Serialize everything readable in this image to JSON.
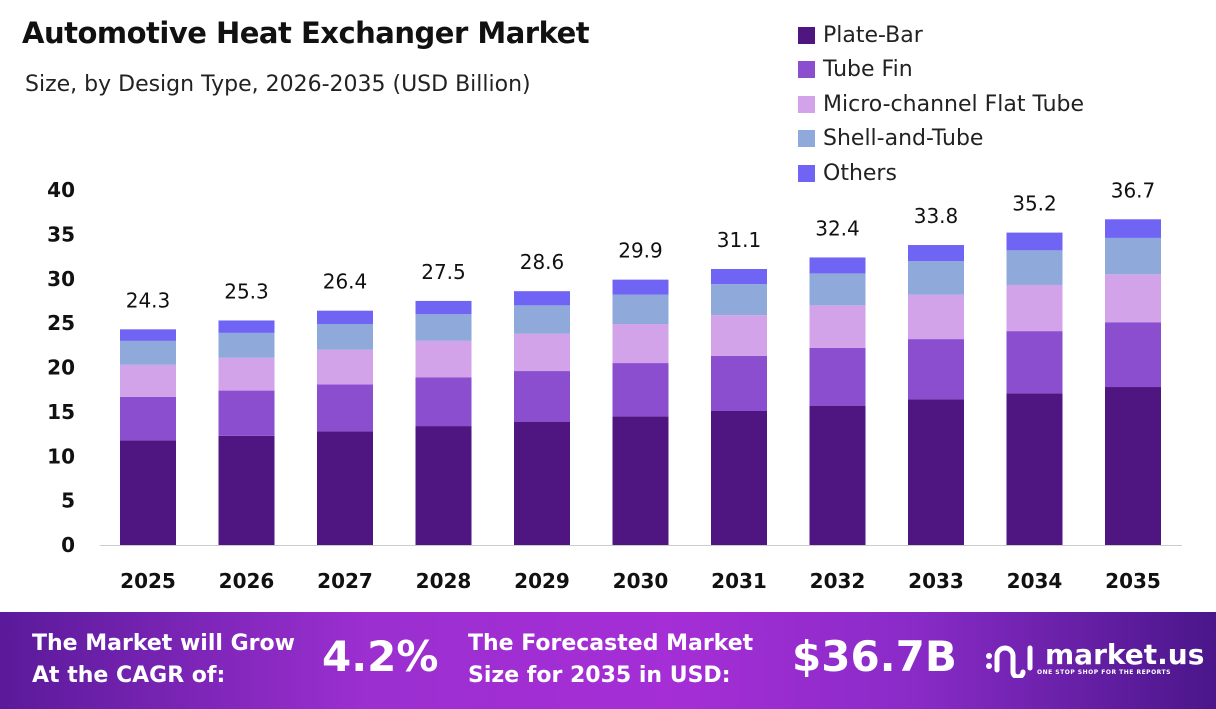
{
  "chart_data": {
    "type": "bar",
    "stacked": true,
    "title": "Automotive Heat Exchanger Market",
    "subtitle": "Size, by Design Type, 2026-2035 (USD Billion)",
    "categories": [
      "2025",
      "2026",
      "2027",
      "2028",
      "2029",
      "2030",
      "2031",
      "2032",
      "2033",
      "2034",
      "2035"
    ],
    "series": [
      {
        "name": "Plate-Bar",
        "color": "#4f1681",
        "values": [
          11.8,
          12.3,
          12.8,
          13.4,
          13.9,
          14.5,
          15.1,
          15.7,
          16.4,
          17.1,
          17.8
        ]
      },
      {
        "name": "Tube Fin",
        "color": "#8a4ecf",
        "values": [
          4.9,
          5.1,
          5.3,
          5.5,
          5.7,
          6.0,
          6.2,
          6.5,
          6.8,
          7.0,
          7.3
        ]
      },
      {
        "name": "Micro-channel Flat Tube",
        "color": "#d3a3ea",
        "values": [
          3.6,
          3.7,
          3.9,
          4.1,
          4.2,
          4.4,
          4.6,
          4.8,
          5.0,
          5.2,
          5.4
        ]
      },
      {
        "name": "Shell-and-Tube",
        "color": "#8fa9db",
        "values": [
          2.7,
          2.8,
          2.9,
          3.0,
          3.2,
          3.3,
          3.5,
          3.6,
          3.8,
          3.9,
          4.1
        ]
      },
      {
        "name": "Others",
        "color": "#7064f5",
        "values": [
          1.3,
          1.4,
          1.5,
          1.5,
          1.6,
          1.7,
          1.7,
          1.8,
          1.8,
          2.0,
          2.1
        ]
      }
    ],
    "totals": [
      "24.3",
      "25.3",
      "26.4",
      "27.5",
      "28.6",
      "29.9",
      "31.1",
      "32.4",
      "33.8",
      "35.2",
      "36.7"
    ],
    "yticks": [
      "0",
      "5",
      "10",
      "15",
      "20",
      "25",
      "30",
      "35",
      "40"
    ],
    "ylim": [
      0,
      40
    ],
    "grid": false,
    "legend_position": "top-right"
  },
  "footer": {
    "cagr_label_1": "The Market will Grow",
    "cagr_label_2": "At the CAGR of:",
    "cagr_value": "4.2%",
    "forecast_label_1": "The Forecasted Market",
    "forecast_label_2": "Size for 2035 in USD:",
    "forecast_value": "$36.7B",
    "logo_text": "market.us",
    "logo_tagline": "ONE STOP SHOP FOR THE REPORTS"
  }
}
